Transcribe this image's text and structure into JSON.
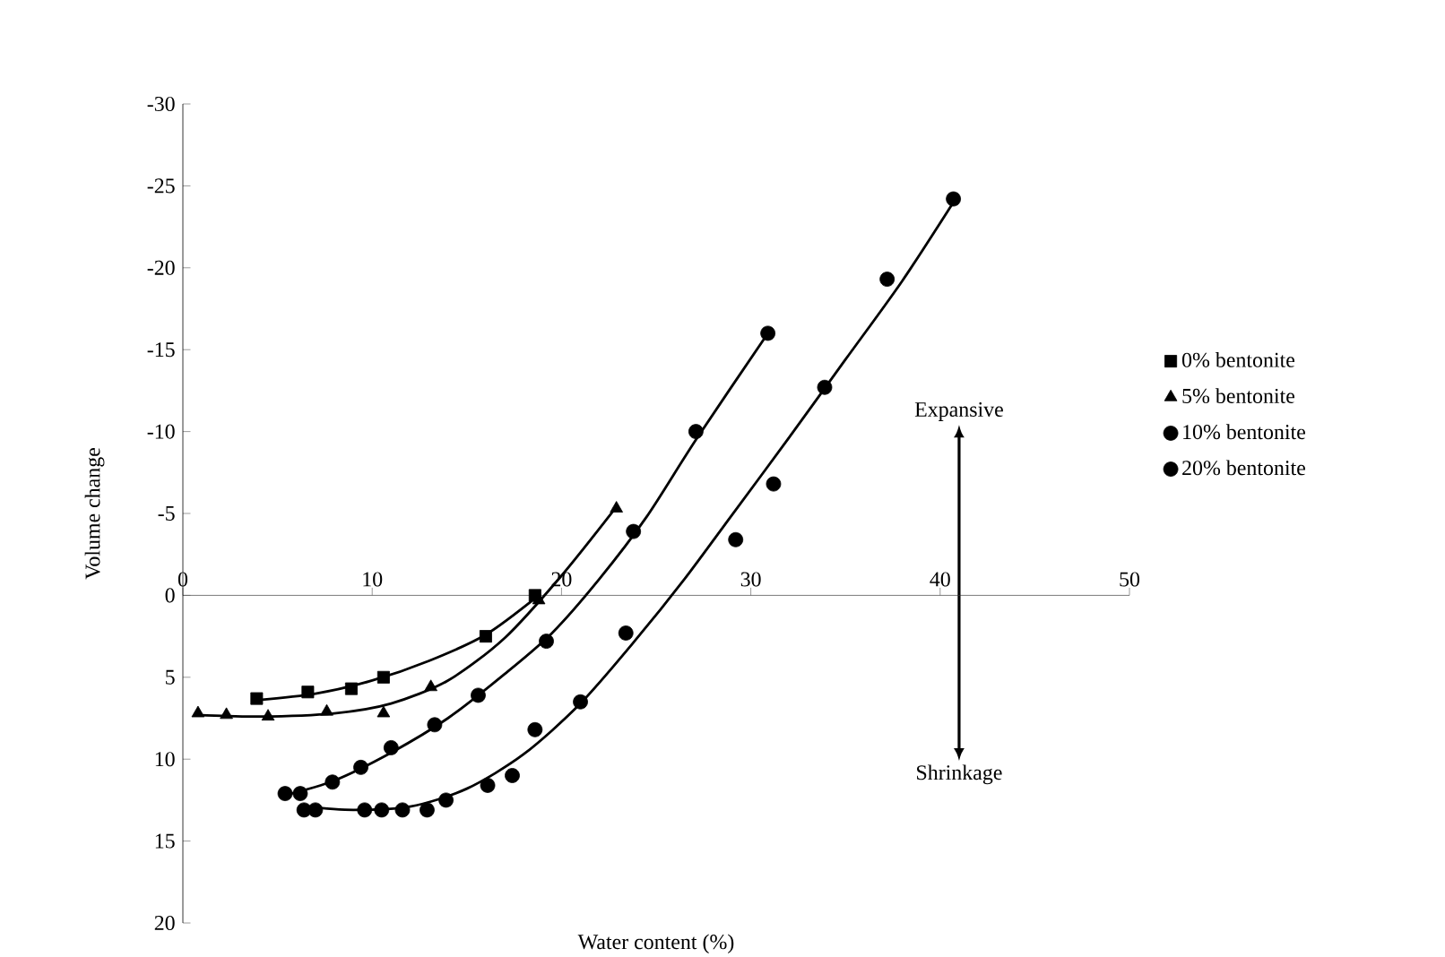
{
  "chart_data": {
    "type": "scatter",
    "xlabel": "Water content (%)",
    "ylabel": "Volume change",
    "xlim": [
      0,
      50
    ],
    "xticks": [
      0,
      10,
      20,
      30,
      40,
      50
    ],
    "ylim": [
      20,
      -30
    ],
    "yticks": [
      -30,
      -25,
      -20,
      -15,
      -10,
      -5,
      0,
      5,
      10,
      15,
      20
    ],
    "grid": false,
    "legend": "right",
    "series": [
      {
        "name": "0% bentonite",
        "color": "#000000",
        "marker": "square",
        "x": [
          3.9,
          6.6,
          8.9,
          10.6,
          16.0,
          18.6
        ],
        "values": [
          6.3,
          5.9,
          5.7,
          5.0,
          2.5,
          0
        ]
      },
      {
        "name": "5% bentonite",
        "color": "#000000",
        "marker": "triangle",
        "x": [
          0.8,
          2.3,
          4.5,
          7.6,
          10.6,
          13.1,
          18.8,
          22.9
        ],
        "values": [
          7.2,
          7.3,
          7.4,
          7.1,
          7.2,
          5.6,
          0.3,
          -5.3
        ]
      },
      {
        "name": "10% bentonite",
        "color": "#000000",
        "marker": "circle",
        "x": [
          5.4,
          6.2,
          7.9,
          9.4,
          11.0,
          13.3,
          15.6,
          19.2,
          23.8,
          27.1,
          30.9
        ],
        "values": [
          12.1,
          12.1,
          11.4,
          10.5,
          9.3,
          7.9,
          6.1,
          2.8,
          -3.9,
          -10.0,
          -16.0
        ]
      },
      {
        "name": "20% bentonite",
        "color": "#000000",
        "marker": "circle",
        "x": [
          6.4,
          7.0,
          9.6,
          10.5,
          11.6,
          12.9,
          13.9,
          16.1,
          17.4,
          18.6,
          21.0,
          23.4,
          29.2,
          31.2,
          33.9,
          37.2,
          40.7
        ],
        "values": [
          13.1,
          13.1,
          13.1,
          13.1,
          13.1,
          13.1,
          12.5,
          11.6,
          11.0,
          8.2,
          6.5,
          2.3,
          -3.4,
          -6.8,
          -12.7,
          -19.3,
          -24.2
        ]
      },
      {
        "type": "line",
        "color": "#000000",
        "marker": "none",
        "line_style": "solid",
        "x": [
          3.9,
          7,
          10,
          13,
          16,
          18.8
        ],
        "values": [
          6.4,
          6.0,
          5.2,
          4.0,
          2.4,
          0
        ]
      },
      {
        "type": "line",
        "color": "#000000",
        "marker": "none",
        "line_style": "solid",
        "x": [
          0.8,
          4,
          8,
          11,
          14,
          17,
          20,
          22.9
        ],
        "values": [
          7.3,
          7.4,
          7.2,
          6.6,
          5.2,
          2.6,
          -1.2,
          -5.4
        ]
      },
      {
        "type": "line",
        "color": "#000000",
        "marker": "none",
        "line_style": "solid",
        "x": [
          5.4,
          8,
          11,
          14,
          17,
          19.5,
          22,
          24.5,
          27.1,
          30.9
        ],
        "values": [
          12.2,
          11.3,
          9.6,
          7.5,
          4.8,
          2.3,
          -1.0,
          -4.8,
          -9.5,
          -16.0
        ]
      },
      {
        "type": "line",
        "color": "#000000",
        "marker": "none",
        "line_style": "solid",
        "x": [
          6.4,
          9,
          12,
          15,
          18,
          21,
          24,
          26.5,
          29,
          32,
          35,
          38,
          40.7
        ],
        "values": [
          12.9,
          13.1,
          12.9,
          11.8,
          9.7,
          6.6,
          2.6,
          -1.0,
          -4.9,
          -9.6,
          -14.4,
          -19.2,
          -24.0
        ]
      }
    ],
    "annotations": [
      "Expansive",
      "Shrinkage"
    ]
  }
}
